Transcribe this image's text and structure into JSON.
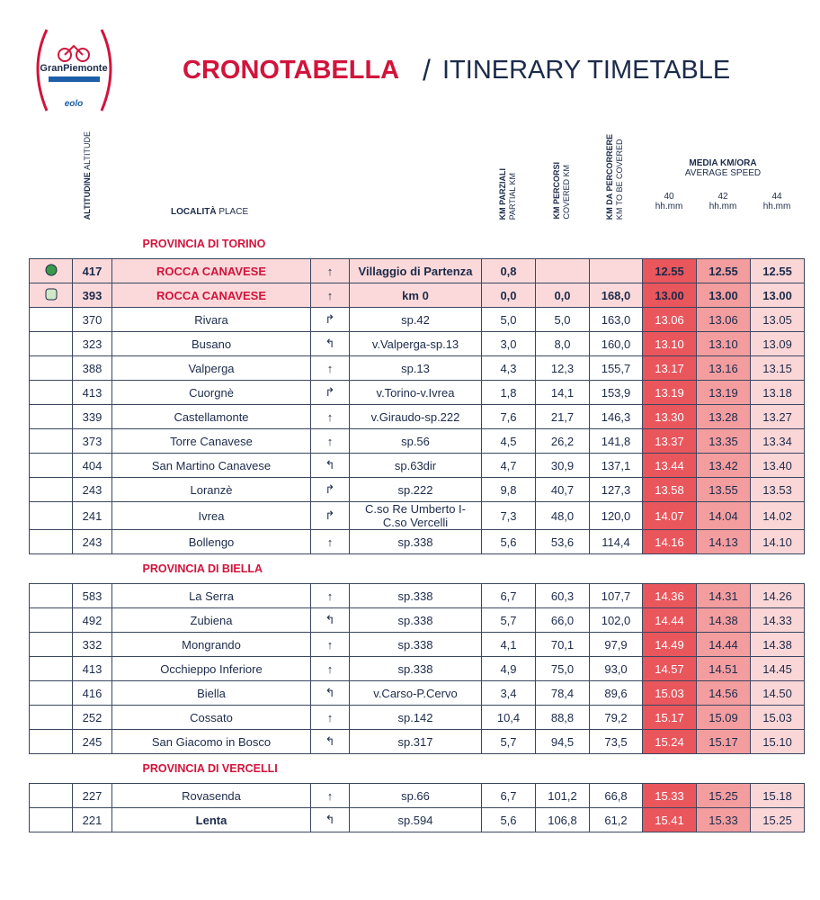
{
  "logo": {
    "brand": "GranPiemonte",
    "sponsor": "eolo"
  },
  "header": {
    "title": "CRONOTABELLA",
    "separator": "/",
    "subtitle": "ITINERARY TIMETABLE"
  },
  "columns": {
    "altitude": {
      "main": "ALTITUDINE",
      "sub": "ALTITUDE"
    },
    "place": {
      "main": "LOCALITÀ",
      "sub": "PLACE"
    },
    "partial": {
      "main": "KM PARZIALI",
      "sub": "PARTIAL KM"
    },
    "covered": {
      "main": "KM PERCORSI",
      "sub": "COVERED KM"
    },
    "remaining": {
      "main": "KM DA PERCORRERE",
      "sub": "KM TO BE COVERED"
    },
    "speed": {
      "main": "MEDIA KM/ORA",
      "sub": "AVERAGE SPEED",
      "speeds": [
        "40",
        "42",
        "44"
      ],
      "unit": "hh.mm"
    }
  },
  "sections": [
    {
      "name": "PROVINCIA DI TORINO",
      "rows": [
        [
          "417",
          "ROCCA CANAVESE",
          "↑",
          "Villaggio di Partenza",
          "0,8",
          "",
          "",
          "12.55",
          "12.55",
          "12.55"
        ],
        [
          "393",
          "ROCCA CANAVESE",
          "↑",
          "km 0",
          "0,0",
          "0,0",
          "168,0",
          "13.00",
          "13.00",
          "13.00"
        ],
        [
          "370",
          "Rivara",
          "↱",
          "sp.42",
          "5,0",
          "5,0",
          "163,0",
          "13.06",
          "13.06",
          "13.05"
        ],
        [
          "323",
          "Busano",
          "↰",
          "v.Valperga-sp.13",
          "3,0",
          "8,0",
          "160,0",
          "13.10",
          "13.10",
          "13.09"
        ],
        [
          "388",
          "Valperga",
          "↑",
          "sp.13",
          "4,3",
          "12,3",
          "155,7",
          "13.17",
          "13.16",
          "13.15"
        ],
        [
          "413",
          "Cuorgnè",
          "↱",
          "v.Torino-v.Ivrea",
          "1,8",
          "14,1",
          "153,9",
          "13.19",
          "13.19",
          "13.18"
        ],
        [
          "339",
          "Castellamonte",
          "↑",
          "v.Giraudo-sp.222",
          "7,6",
          "21,7",
          "146,3",
          "13.30",
          "13.28",
          "13.27"
        ],
        [
          "373",
          "Torre Canavese",
          "↑",
          "sp.56",
          "4,5",
          "26,2",
          "141,8",
          "13.37",
          "13.35",
          "13.34"
        ],
        [
          "404",
          "San Martino Canavese",
          "↰",
          "sp.63dir",
          "4,7",
          "30,9",
          "137,1",
          "13.44",
          "13.42",
          "13.40"
        ],
        [
          "243",
          "Loranzè",
          "↱",
          "sp.222",
          "9,8",
          "40,7",
          "127,3",
          "13.58",
          "13.55",
          "13.53"
        ],
        [
          "241",
          "Ivrea",
          "↱",
          "C.so Re Umberto I-C.so Vercelli",
          "7,3",
          "48,0",
          "120,0",
          "14.07",
          "14.04",
          "14.02"
        ],
        [
          "243",
          "Bollengo",
          "↑",
          "sp.338",
          "5,6",
          "53,6",
          "114,4",
          "14.16",
          "14.13",
          "14.10"
        ]
      ]
    },
    {
      "name": "PROVINCIA DI BIELLA",
      "rows": [
        [
          "583",
          "La Serra",
          "↑",
          "sp.338",
          "6,7",
          "60,3",
          "107,7",
          "14.36",
          "14.31",
          "14.26"
        ],
        [
          "492",
          "Zubiena",
          "↰",
          "sp.338",
          "5,7",
          "66,0",
          "102,0",
          "14.44",
          "14.38",
          "14.33"
        ],
        [
          "332",
          "Mongrando",
          "↑",
          "sp.338",
          "4,1",
          "70,1",
          "97,9",
          "14.49",
          "14.44",
          "14.38"
        ],
        [
          "413",
          "Occhieppo Inferiore",
          "↑",
          "sp.338",
          "4,9",
          "75,0",
          "93,0",
          "14.57",
          "14.51",
          "14.45"
        ],
        [
          "416",
          "Biella",
          "↰",
          "v.Carso-P.Cervo",
          "3,4",
          "78,4",
          "89,6",
          "15.03",
          "14.56",
          "14.50"
        ],
        [
          "252",
          "Cossato",
          "↑",
          "sp.142",
          "10,4",
          "88,8",
          "79,2",
          "15.17",
          "15.09",
          "15.03"
        ],
        [
          "245",
          "San Giacomo in Bosco",
          "↰",
          "sp.317",
          "5,7",
          "94,5",
          "73,5",
          "15.24",
          "15.17",
          "15.10"
        ]
      ]
    },
    {
      "name": "PROVINCIA DI VERCELLI",
      "rows": [
        [
          "227",
          "Rovasenda",
          "↑",
          "sp.66",
          "6,7",
          "101,2",
          "66,8",
          "15.33",
          "15.25",
          "15.18"
        ],
        [
          "221",
          "Lenta",
          "↰",
          "sp.594",
          "5,6",
          "106,8",
          "61,2",
          "15.41",
          "15.33",
          "15.25"
        ]
      ]
    }
  ]
}
